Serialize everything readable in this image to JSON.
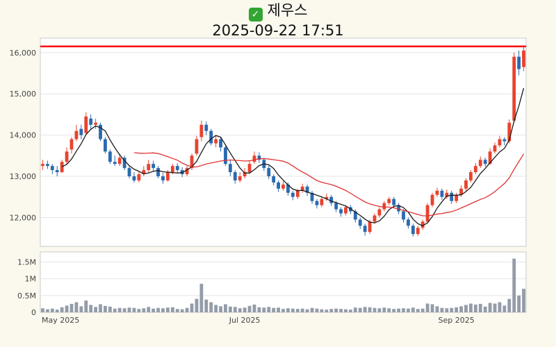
{
  "header": {
    "title": "제우스",
    "subtitle": "2025-09-22 17:51",
    "icon": "✓",
    "icon_color": "#33a532"
  },
  "chart_data": {
    "type": "candlestick",
    "title": "제우스",
    "timestamp": "2025-09-22 17:51",
    "legend_position": "none",
    "grid": true,
    "price_axis": {
      "ylim": [
        11300,
        16350
      ],
      "ticks": [
        12000,
        13000,
        14000,
        15000,
        16000
      ],
      "labels": [
        "12,000",
        "13,000",
        "14,000",
        "15,000",
        "16,000"
      ]
    },
    "volume_axis": {
      "vmax": 1800000,
      "ticks": [
        0,
        500000,
        1000000,
        1500000
      ],
      "labels": [
        "0",
        "0.5M",
        "1M",
        "1.5M"
      ]
    },
    "x_axis": {
      "labels": [
        {
          "text": "May 2025",
          "index": 0
        },
        {
          "text": "Jul 2025",
          "index": 42
        },
        {
          "text": "Sep 2025",
          "index": 86
        }
      ]
    },
    "limit_line": {
      "value": 16150,
      "color": "#ff0000"
    },
    "moving_averages": [
      {
        "period": 5,
        "color": "#1a1a1a"
      },
      {
        "period": 20,
        "color": "#e03131"
      }
    ],
    "colors": {
      "up": "#e8432e",
      "down": "#2a6ab0",
      "volume": "#939ca8",
      "grid": "#e4e4e4",
      "panel_border": "#c8c8c8",
      "background": "#fbf8ee",
      "label": "#444444"
    },
    "candles": [
      [
        13250,
        13400,
        13150,
        13300,
        120000
      ],
      [
        13300,
        13380,
        13180,
        13250,
        90000
      ],
      [
        13250,
        13300,
        13050,
        13150,
        110000
      ],
      [
        13150,
        13250,
        13000,
        13100,
        80000
      ],
      [
        13100,
        13400,
        13080,
        13350,
        150000
      ],
      [
        13350,
        13700,
        13300,
        13600,
        200000
      ],
      [
        13650,
        13950,
        13550,
        13900,
        250000
      ],
      [
        13900,
        14250,
        13850,
        14100,
        300000
      ],
      [
        14150,
        14250,
        13900,
        14000,
        180000
      ],
      [
        14050,
        14550,
        14000,
        14450,
        350000
      ],
      [
        14400,
        14500,
        14150,
        14250,
        220000
      ],
      [
        14250,
        14400,
        14150,
        14300,
        160000
      ],
      [
        14250,
        14300,
        13850,
        13900,
        240000
      ],
      [
        13900,
        13950,
        13550,
        13600,
        190000
      ],
      [
        13600,
        13650,
        13300,
        13350,
        170000
      ],
      [
        13350,
        13500,
        13250,
        13300,
        110000
      ],
      [
        13300,
        13550,
        13250,
        13450,
        130000
      ],
      [
        13450,
        13500,
        13150,
        13200,
        120000
      ],
      [
        13200,
        13250,
        12950,
        13000,
        140000
      ],
      [
        13000,
        13100,
        12850,
        12900,
        130000
      ],
      [
        12900,
        13100,
        12850,
        13050,
        100000
      ],
      [
        13050,
        13250,
        13000,
        13150,
        120000
      ],
      [
        13150,
        13400,
        13100,
        13300,
        160000
      ],
      [
        13300,
        13380,
        13120,
        13200,
        110000
      ],
      [
        13200,
        13250,
        12950,
        13000,
        130000
      ],
      [
        13000,
        13080,
        12820,
        12900,
        120000
      ],
      [
        12900,
        13150,
        12870,
        13100,
        140000
      ],
      [
        13100,
        13300,
        13050,
        13250,
        150000
      ],
      [
        13250,
        13320,
        13080,
        13150,
        100000
      ],
      [
        13150,
        13220,
        12980,
        13050,
        90000
      ],
      [
        13050,
        13250,
        13000,
        13200,
        130000
      ],
      [
        13200,
        13550,
        13150,
        13500,
        260000
      ],
      [
        13550,
        13980,
        13500,
        13900,
        400000
      ],
      [
        13950,
        14350,
        13850,
        14250,
        850000
      ],
      [
        14250,
        14330,
        14000,
        14100,
        380000
      ],
      [
        14100,
        14150,
        13750,
        13800,
        300000
      ],
      [
        13800,
        13980,
        13700,
        13900,
        220000
      ],
      [
        13900,
        13950,
        13600,
        13700,
        180000
      ],
      [
        13700,
        13750,
        13250,
        13300,
        240000
      ],
      [
        13300,
        13400,
        13000,
        13100,
        170000
      ],
      [
        13100,
        13150,
        12820,
        12900,
        160000
      ],
      [
        12900,
        13100,
        12850,
        13000,
        120000
      ],
      [
        13000,
        13200,
        12950,
        13100,
        140000
      ],
      [
        13100,
        13380,
        13050,
        13300,
        190000
      ],
      [
        13350,
        13600,
        13300,
        13500,
        230000
      ],
      [
        13500,
        13580,
        13320,
        13400,
        150000
      ],
      [
        13400,
        13450,
        13130,
        13200,
        140000
      ],
      [
        13200,
        13260,
        12930,
        13000,
        160000
      ],
      [
        13000,
        13050,
        12780,
        12850,
        130000
      ],
      [
        12850,
        12900,
        12620,
        12700,
        140000
      ],
      [
        12700,
        12880,
        12650,
        12800,
        100000
      ],
      [
        12800,
        12850,
        12530,
        12600,
        120000
      ],
      [
        12600,
        12650,
        12420,
        12500,
        110000
      ],
      [
        12500,
        12700,
        12450,
        12650,
        100000
      ],
      [
        12650,
        12820,
        12600,
        12750,
        110000
      ],
      [
        12750,
        12800,
        12520,
        12600,
        90000
      ],
      [
        12600,
        12650,
        12330,
        12400,
        130000
      ],
      [
        12400,
        12450,
        12220,
        12300,
        110000
      ],
      [
        12300,
        12500,
        12250,
        12450,
        90000
      ],
      [
        12450,
        12580,
        12400,
        12500,
        80000
      ],
      [
        12500,
        12550,
        12280,
        12350,
        100000
      ],
      [
        12350,
        12400,
        12130,
        12200,
        110000
      ],
      [
        12200,
        12250,
        12020,
        12100,
        100000
      ],
      [
        12100,
        12300,
        12050,
        12250,
        90000
      ],
      [
        12250,
        12300,
        12080,
        12150,
        80000
      ],
      [
        12150,
        12200,
        11880,
        11950,
        140000
      ],
      [
        11950,
        12000,
        11720,
        11800,
        130000
      ],
      [
        11800,
        11850,
        11560,
        11650,
        160000
      ],
      [
        11650,
        11950,
        11600,
        11900,
        150000
      ],
      [
        11900,
        12100,
        11850,
        12050,
        130000
      ],
      [
        12050,
        12250,
        12000,
        12200,
        120000
      ],
      [
        12200,
        12400,
        12150,
        12350,
        140000
      ],
      [
        12350,
        12500,
        12300,
        12450,
        120000
      ],
      [
        12450,
        12500,
        12230,
        12300,
        100000
      ],
      [
        12300,
        12350,
        12080,
        12150,
        110000
      ],
      [
        12150,
        12200,
        11880,
        11950,
        120000
      ],
      [
        11950,
        12000,
        11730,
        11800,
        110000
      ],
      [
        11800,
        11850,
        11540,
        11600,
        140000
      ],
      [
        11600,
        11800,
        11550,
        11750,
        100000
      ],
      [
        11750,
        11950,
        11700,
        11900,
        110000
      ],
      [
        11900,
        12350,
        11880,
        12300,
        260000
      ],
      [
        12300,
        12600,
        12250,
        12550,
        240000
      ],
      [
        12550,
        12720,
        12500,
        12650,
        180000
      ],
      [
        12650,
        12700,
        12430,
        12500,
        130000
      ],
      [
        12500,
        12680,
        12450,
        12600,
        120000
      ],
      [
        12600,
        12650,
        12330,
        12400,
        130000
      ],
      [
        12400,
        12600,
        12350,
        12550,
        150000
      ],
      [
        12550,
        12780,
        12500,
        12700,
        180000
      ],
      [
        12700,
        12950,
        12650,
        12900,
        220000
      ],
      [
        12900,
        13150,
        12850,
        13100,
        260000
      ],
      [
        13100,
        13320,
        13050,
        13250,
        230000
      ],
      [
        13250,
        13480,
        13200,
        13400,
        250000
      ],
      [
        13400,
        13450,
        13230,
        13300,
        170000
      ],
      [
        13300,
        13680,
        13280,
        13600,
        280000
      ],
      [
        13600,
        13820,
        13550,
        13750,
        260000
      ],
      [
        13750,
        13980,
        13700,
        13900,
        300000
      ],
      [
        13900,
        13950,
        13750,
        13850,
        200000
      ],
      [
        13850,
        14380,
        13800,
        14300,
        400000
      ],
      [
        14350,
        16000,
        14300,
        15900,
        1600000
      ],
      [
        15900,
        16050,
        15450,
        15600,
        500000
      ],
      [
        15650,
        16150,
        15550,
        16050,
        700000
      ]
    ]
  }
}
